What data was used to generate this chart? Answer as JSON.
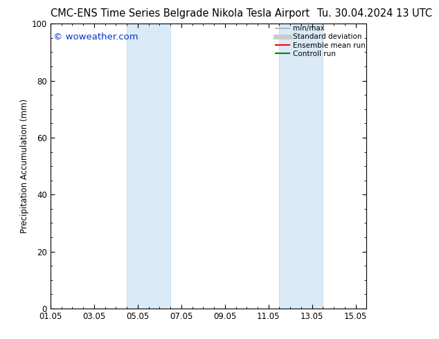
{
  "title_left": "CMC-ENS Time Series Belgrade Nikola Tesla Airport",
  "title_right": "Tu. 30.04.2024 13 UTC",
  "ylabel": "Precipitation Accumulation (mm)",
  "watermark": "© woweather.com",
  "watermark_color": "#0033cc",
  "xlim_start": 0,
  "xlim_end": 14.5,
  "ylim": [
    0,
    100
  ],
  "yticks": [
    0,
    20,
    40,
    60,
    80,
    100
  ],
  "xtick_labels": [
    "01.05",
    "03.05",
    "05.05",
    "07.05",
    "09.05",
    "11.05",
    "13.05",
    "15.05"
  ],
  "xtick_positions": [
    0,
    2,
    4,
    6,
    8,
    10,
    12,
    14
  ],
  "shaded_bands": [
    {
      "xmin": 3.5,
      "xmax": 5.5
    },
    {
      "xmin": 10.5,
      "xmax": 12.5
    }
  ],
  "band_color": "#daeaf7",
  "band_edge_color": "#b8d4ea",
  "legend_items": [
    {
      "label": "min/max",
      "color": "#aaaaaa",
      "lw": 1.2,
      "ls": "-"
    },
    {
      "label": "Standard deviation",
      "color": "#cccccc",
      "lw": 5,
      "ls": "-"
    },
    {
      "label": "Ensemble mean run",
      "color": "#ff0000",
      "lw": 1.5,
      "ls": "-"
    },
    {
      "label": "Controll run",
      "color": "#008800",
      "lw": 1.5,
      "ls": "-"
    }
  ],
  "bg_color": "#ffffff",
  "plot_bg_color": "#ffffff",
  "title_fontsize": 10.5,
  "tick_fontsize": 8.5,
  "label_fontsize": 8.5,
  "watermark_fontsize": 9.5,
  "legend_fontsize": 7.5
}
